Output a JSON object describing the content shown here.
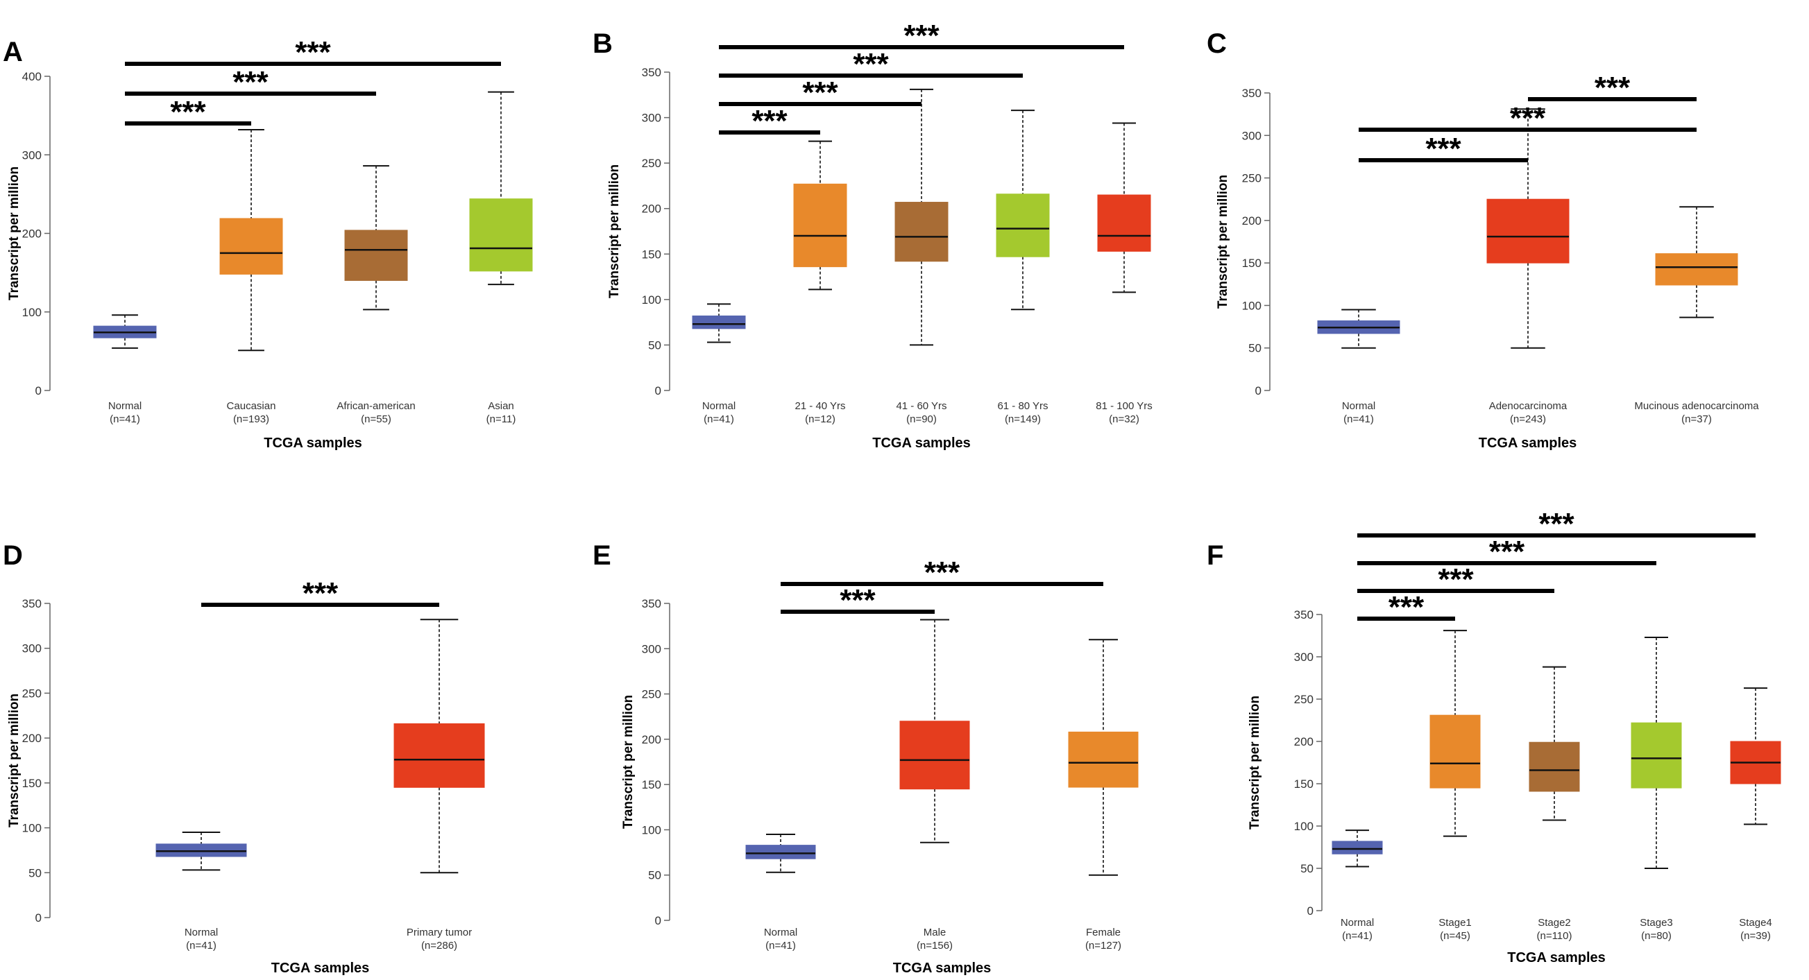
{
  "chart_data": [
    {
      "type": "box",
      "panel": "A",
      "ylabel": "Transcript per million",
      "xlabel": "TCGA samples",
      "ylim": [
        0,
        400
      ],
      "yticks": [
        0,
        100,
        200,
        300,
        400
      ],
      "boxes": [
        {
          "name": "Normal",
          "n": "(n=41)",
          "color": "#5564b0",
          "min": 54,
          "q1": 67,
          "median": 74,
          "q3": 82,
          "max": 96
        },
        {
          "name": "Caucasian",
          "n": "(n=193)",
          "color": "#e8892b",
          "min": 51,
          "q1": 148,
          "median": 175,
          "q3": 219,
          "max": 332
        },
        {
          "name": "African-american",
          "n": "(n=55)",
          "color": "#a86c35",
          "min": 103,
          "q1": 140,
          "median": 179,
          "q3": 204,
          "max": 286
        },
        {
          "name": "Asian",
          "n": "(n=11)",
          "color": "#a4c92e",
          "min": 135,
          "q1": 152,
          "median": 181,
          "q3": 244,
          "max": 380
        }
      ],
      "significance": [
        {
          "from": 0,
          "to": 1,
          "label": "***"
        },
        {
          "from": 0,
          "to": 2,
          "label": "***"
        },
        {
          "from": 0,
          "to": 3,
          "label": "***"
        }
      ]
    },
    {
      "type": "box",
      "panel": "B",
      "ylabel": "Transcript per million",
      "xlabel": "TCGA samples",
      "ylim": [
        0,
        350
      ],
      "yticks": [
        0,
        50,
        100,
        150,
        200,
        250,
        300,
        350
      ],
      "boxes": [
        {
          "name": "Normal",
          "n": "(n=41)",
          "color": "#5564b0",
          "min": 53,
          "q1": 68,
          "median": 73,
          "q3": 82,
          "max": 95
        },
        {
          "name": "21 - 40 Yrs",
          "n": "(n=12)",
          "color": "#e8892b",
          "min": 111,
          "q1": 136,
          "median": 170,
          "q3": 227,
          "max": 274
        },
        {
          "name": "41 - 60 Yrs",
          "n": "(n=90)",
          "color": "#a86c35",
          "min": 50,
          "q1": 142,
          "median": 169,
          "q3": 207,
          "max": 331
        },
        {
          "name": "61 - 80 Yrs",
          "n": "(n=149)",
          "color": "#a4c92e",
          "min": 89,
          "q1": 147,
          "median": 178,
          "q3": 216,
          "max": 308
        },
        {
          "name": "81 - 100 Yrs",
          "n": "(n=32)",
          "color": "#e53d1e",
          "min": 108,
          "q1": 153,
          "median": 170,
          "q3": 215,
          "max": 294
        }
      ],
      "significance": [
        {
          "from": 0,
          "to": 1,
          "label": "***"
        },
        {
          "from": 0,
          "to": 2,
          "label": "***"
        },
        {
          "from": 0,
          "to": 3,
          "label": "***"
        },
        {
          "from": 0,
          "to": 4,
          "label": "***"
        }
      ]
    },
    {
      "type": "box",
      "panel": "C",
      "ylabel": "Transcript per million",
      "xlabel": "TCGA samples",
      "ylim": [
        0,
        350
      ],
      "yticks": [
        0,
        50,
        100,
        150,
        200,
        250,
        300,
        350
      ],
      "boxes": [
        {
          "name": "Normal",
          "n": "(n=41)",
          "color": "#5564b0",
          "min": 50,
          "q1": 67,
          "median": 74,
          "q3": 82,
          "max": 95
        },
        {
          "name": "Adenocarcinoma",
          "n": "(n=243)",
          "color": "#e53d1e",
          "min": 50,
          "q1": 150,
          "median": 181,
          "q3": 225,
          "max": 331
        },
        {
          "name": "Mucinous adenocarcinoma",
          "n": "(n=37)",
          "color": "#e8892b",
          "min": 86,
          "q1": 124,
          "median": 145,
          "q3": 161,
          "max": 216
        }
      ],
      "significance": [
        {
          "from": 0,
          "to": 1,
          "label": "***"
        },
        {
          "from": 0,
          "to": 2,
          "label": "***"
        },
        {
          "from": 1,
          "to": 2,
          "label": "***"
        }
      ]
    },
    {
      "type": "box",
      "panel": "D",
      "ylabel": "Transcript per million",
      "xlabel": "TCGA samples",
      "ylim": [
        0,
        350
      ],
      "yticks": [
        0,
        50,
        100,
        150,
        200,
        250,
        300,
        350
      ],
      "boxes": [
        {
          "name": "Normal",
          "n": "(n=41)",
          "color": "#5564b0",
          "min": 53,
          "q1": 68,
          "median": 74,
          "q3": 82,
          "max": 95
        },
        {
          "name": "Primary tumor",
          "n": "(n=286)",
          "color": "#e53d1e",
          "min": 50,
          "q1": 145,
          "median": 176,
          "q3": 216,
          "max": 332
        }
      ],
      "significance": [
        {
          "from": 0,
          "to": 1,
          "label": "***"
        }
      ]
    },
    {
      "type": "box",
      "panel": "E",
      "ylabel": "Transcript per million",
      "xlabel": "TCGA samples",
      "ylim": [
        0,
        350
      ],
      "yticks": [
        0,
        50,
        100,
        150,
        200,
        250,
        300,
        350
      ],
      "boxes": [
        {
          "name": "Normal",
          "n": "(n=41)",
          "color": "#5564b0",
          "min": 53,
          "q1": 68,
          "median": 74,
          "q3": 83,
          "max": 95
        },
        {
          "name": "Male",
          "n": "(n=156)",
          "color": "#e53d1e",
          "min": 86,
          "q1": 145,
          "median": 177,
          "q3": 220,
          "max": 332
        },
        {
          "name": "Female",
          "n": "(n=127)",
          "color": "#e8892b",
          "min": 50,
          "q1": 147,
          "median": 174,
          "q3": 208,
          "max": 310
        }
      ],
      "significance": [
        {
          "from": 0,
          "to": 1,
          "label": "***"
        },
        {
          "from": 0,
          "to": 2,
          "label": "***"
        }
      ]
    },
    {
      "type": "box",
      "panel": "F",
      "ylabel": "Transcript per million",
      "xlabel": "TCGA samples",
      "ylim": [
        0,
        350
      ],
      "yticks": [
        0,
        50,
        100,
        150,
        200,
        250,
        300,
        350
      ],
      "boxes": [
        {
          "name": "Normal",
          "n": "(n=41)",
          "color": "#5564b0",
          "min": 52,
          "q1": 67,
          "median": 73,
          "q3": 82,
          "max": 95
        },
        {
          "name": "Stage1",
          "n": "(n=45)",
          "color": "#e8892b",
          "min": 88,
          "q1": 145,
          "median": 174,
          "q3": 231,
          "max": 331
        },
        {
          "name": "Stage2",
          "n": "(n=110)",
          "color": "#a86c35",
          "min": 107,
          "q1": 141,
          "median": 166,
          "q3": 199,
          "max": 288
        },
        {
          "name": "Stage3",
          "n": "(n=80)",
          "color": "#a4c92e",
          "min": 50,
          "q1": 145,
          "median": 180,
          "q3": 222,
          "max": 323
        },
        {
          "name": "Stage4",
          "n": "(n=39)",
          "color": "#e53d1e",
          "min": 102,
          "q1": 150,
          "median": 175,
          "q3": 200,
          "max": 263
        }
      ],
      "significance": [
        {
          "from": 0,
          "to": 1,
          "label": "***"
        },
        {
          "from": 0,
          "to": 2,
          "label": "***"
        },
        {
          "from": 0,
          "to": 3,
          "label": "***"
        },
        {
          "from": 0,
          "to": 4,
          "label": "***"
        }
      ]
    }
  ]
}
